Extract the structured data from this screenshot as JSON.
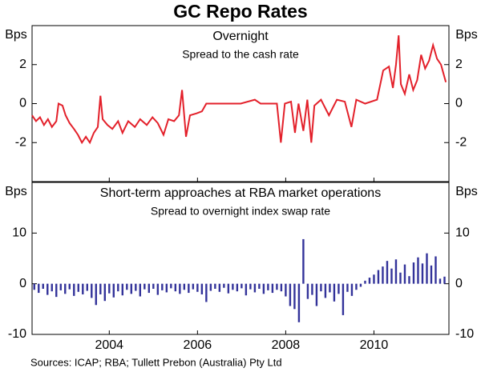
{
  "title": "GC Repo Rates",
  "source": "Sources: ICAP; RBA; Tullett Prebon (Australia) Pty Ltd",
  "chart_data": [
    {
      "type": "line",
      "title": "Overnight",
      "subtitle": "Spread to the cash rate",
      "y_label": "Bps",
      "color": "#e3202a",
      "x": [
        2002.25,
        2002.34,
        2002.43,
        2002.52,
        2002.61,
        2002.7,
        2002.8,
        2002.85,
        2002.94,
        2003.01,
        2003.1,
        2003.2,
        2003.29,
        2003.38,
        2003.47,
        2003.56,
        2003.65,
        2003.74,
        2003.8,
        2003.85,
        2003.96,
        2004.07,
        2004.2,
        2004.3,
        2004.43,
        2004.58,
        2004.7,
        2004.85,
        2004.98,
        2005.1,
        2005.23,
        2005.34,
        2005.47,
        2005.58,
        2005.65,
        2005.74,
        2005.83,
        2005.98,
        2006.1,
        2006.2,
        2006.61,
        2006.98,
        2007.3,
        2007.43,
        2007.8,
        2007.89,
        2007.98,
        2008.12,
        2008.21,
        2008.29,
        2008.4,
        2008.49,
        2008.58,
        2008.65,
        2008.8,
        2008.98,
        2009.16,
        2009.34,
        2009.49,
        2009.6,
        2009.8,
        2010.07,
        2010.21,
        2010.34,
        2010.43,
        2010.5,
        2010.56,
        2010.61,
        2010.7,
        2010.8,
        2010.89,
        2010.98,
        2011.07,
        2011.16,
        2011.25,
        2011.34,
        2011.43,
        2011.52,
        2011.63
      ],
      "values": [
        -0.6,
        -0.9,
        -0.7,
        -1.1,
        -0.8,
        -1.2,
        -0.9,
        0.0,
        -0.1,
        -0.6,
        -1.0,
        -1.3,
        -1.6,
        -2.0,
        -1.7,
        -2.0,
        -1.5,
        -1.2,
        0.4,
        -0.8,
        -1.1,
        -1.3,
        -0.9,
        -1.5,
        -0.9,
        -1.2,
        -0.8,
        -1.1,
        -0.7,
        -1.0,
        -1.6,
        -0.8,
        -0.9,
        -0.6,
        0.7,
        -1.7,
        -0.6,
        -0.5,
        -0.4,
        0.0,
        0.0,
        0.0,
        0.2,
        0.0,
        0.0,
        -2.0,
        0.0,
        0.1,
        -1.5,
        0.0,
        -1.4,
        0.2,
        -2.0,
        -0.1,
        0.2,
        -0.6,
        0.2,
        0.1,
        -1.2,
        0.2,
        0.0,
        0.2,
        1.7,
        1.9,
        0.8,
        2.0,
        3.5,
        1.0,
        0.5,
        1.5,
        0.7,
        1.2,
        2.5,
        1.8,
        2.2,
        3.0,
        2.3,
        2.0,
        1.1
      ],
      "xlim": [
        2002.25,
        2011.7
      ],
      "xticks": [
        2004,
        2006,
        2008,
        2010
      ],
      "ylim": [
        -4,
        4
      ],
      "yticks": [
        -2,
        0,
        2
      ]
    },
    {
      "type": "bar",
      "title": "Short-term approaches at RBA market operations",
      "subtitle": "Spread to overnight index swap rate",
      "y_label": "Bps",
      "color": "#33339a",
      "x": [
        2002.3,
        2002.4,
        2002.5,
        2002.6,
        2002.7,
        2002.8,
        2002.9,
        2003.0,
        2003.1,
        2003.2,
        2003.3,
        2003.4,
        2003.5,
        2003.6,
        2003.7,
        2003.8,
        2003.9,
        2004.0,
        2004.1,
        2004.2,
        2004.3,
        2004.4,
        2004.5,
        2004.6,
        2004.7,
        2004.8,
        2004.9,
        2005.0,
        2005.1,
        2005.2,
        2005.3,
        2005.4,
        2005.5,
        2005.6,
        2005.7,
        2005.8,
        2005.9,
        2006.0,
        2006.1,
        2006.2,
        2006.3,
        2006.4,
        2006.5,
        2006.6,
        2006.7,
        2006.8,
        2006.9,
        2007.0,
        2007.1,
        2007.2,
        2007.3,
        2007.4,
        2007.5,
        2007.6,
        2007.7,
        2007.8,
        2007.9,
        2008.0,
        2008.1,
        2008.2,
        2008.3,
        2008.4,
        2008.5,
        2008.6,
        2008.7,
        2008.8,
        2008.9,
        2009.0,
        2009.1,
        2009.2,
        2009.3,
        2009.4,
        2009.5,
        2009.6,
        2009.7,
        2009.8,
        2009.9,
        2010.0,
        2010.1,
        2010.2,
        2010.3,
        2010.4,
        2010.5,
        2010.6,
        2010.7,
        2010.8,
        2010.9,
        2011.0,
        2011.1,
        2011.2,
        2011.3,
        2011.4,
        2011.5,
        2011.6
      ],
      "values": [
        -1.2,
        -1.8,
        -1.0,
        -2.2,
        -1.5,
        -2.6,
        -1.3,
        -2.0,
        -1.1,
        -2.4,
        -1.6,
        -2.1,
        -1.4,
        -2.8,
        -4.2,
        -2.1,
        -3.4,
        -1.9,
        -2.7,
        -1.5,
        -2.3,
        -1.2,
        -2.0,
        -1.4,
        -2.5,
        -1.1,
        -1.8,
        -1.0,
        -2.2,
        -1.3,
        -1.7,
        -0.9,
        -1.5,
        -2.0,
        -1.2,
        -1.8,
        -1.1,
        -1.6,
        -2.1,
        -3.6,
        -1.4,
        -1.0,
        -1.6,
        -0.8,
        -1.9,
        -1.2,
        -1.5,
        -0.9,
        -2.3,
        -1.1,
        -1.7,
        -1.0,
        -2.0,
        -1.3,
        -1.8,
        -1.2,
        -1.5,
        -2.5,
        -4.4,
        -5.0,
        -7.6,
        8.8,
        -3.0,
        -2.2,
        -4.4,
        -1.5,
        -2.8,
        -1.7,
        -3.5,
        -2.0,
        -6.2,
        -1.6,
        -2.4,
        -1.2,
        -0.6,
        0.6,
        1.2,
        1.8,
        2.7,
        3.4,
        4.5,
        3.0,
        4.8,
        2.2,
        3.8,
        1.5,
        4.2,
        5.2,
        4.0,
        6.0,
        3.6,
        5.4,
        1.0,
        1.4
      ],
      "xlim": [
        2002.25,
        2011.7
      ],
      "xticks": [
        2004,
        2006,
        2008,
        2010
      ],
      "ylim": [
        -10,
        20
      ],
      "yticks": [
        -10,
        0,
        10
      ]
    }
  ]
}
